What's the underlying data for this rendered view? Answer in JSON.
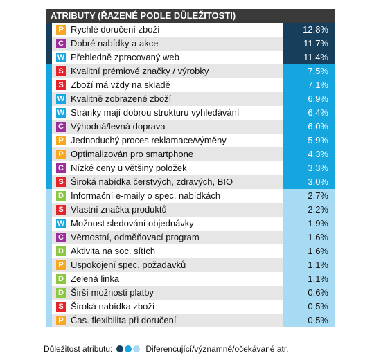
{
  "chart_data": {
    "type": "table",
    "title": "ATRIBUTY (ŘAZENÉ PODLE DŮLEŽITOSTI)",
    "rows": [
      {
        "code": "P",
        "label": "Rychlé doručení zboží",
        "value": "12,8%",
        "tier": 1
      },
      {
        "code": "C",
        "label": "Dobré nabídky a akce",
        "value": "11,7%",
        "tier": 1
      },
      {
        "code": "W",
        "label": "Přehledně zpracovaný web",
        "value": "11,4%",
        "tier": 1
      },
      {
        "code": "S",
        "label": "Kvalitní prémiové značky / výrobky",
        "value": "7,5%",
        "tier": 2
      },
      {
        "code": "S",
        "label": "Zboží má vždy na skladě",
        "value": "7,1%",
        "tier": 2
      },
      {
        "code": "W",
        "label": "Kvalitně zobrazené zboží",
        "value": "6,9%",
        "tier": 2
      },
      {
        "code": "W",
        "label": "Stránky mají dobrou strukturu vyhledávání",
        "value": "6,4%",
        "tier": 2
      },
      {
        "code": "C",
        "label": "Výhodná/levná doprava",
        "value": "6,0%",
        "tier": 2
      },
      {
        "code": "P",
        "label": "Jednoduchý proces reklamace/výměny",
        "value": "5,9%",
        "tier": 2
      },
      {
        "code": "P",
        "label": "Optimalizován pro smartphone",
        "value": "4,3%",
        "tier": 2
      },
      {
        "code": "C",
        "label": "Nízké ceny u většiny položek",
        "value": "3,3%",
        "tier": 2
      },
      {
        "code": "S",
        "label": "Široká nabídka čerstvých, zdravých, BIO",
        "value": "3,0%",
        "tier": 2
      },
      {
        "code": "D",
        "label": "Informační e-maily o spec. nabídkách",
        "value": "2,7%",
        "tier": 3
      },
      {
        "code": "S",
        "label": "Vlastní značka produktů",
        "value": "2,2%",
        "tier": 3
      },
      {
        "code": "W",
        "label": "Možnost sledování objednávky",
        "value": "1,9%",
        "tier": 3
      },
      {
        "code": "C",
        "label": "Věrnostní, odměňovací program",
        "value": "1,6%",
        "tier": 3
      },
      {
        "code": "D",
        "label": "Aktivita na soc. sítích",
        "value": "1,6%",
        "tier": 3
      },
      {
        "code": "P",
        "label": "Uspokojení spec. požadavků",
        "value": "1,1%",
        "tier": 3
      },
      {
        "code": "D",
        "label": "Zelená linka",
        "value": "1,1%",
        "tier": 3
      },
      {
        "code": "D",
        "label": "Širší možnosti platby",
        "value": "0,6%",
        "tier": 3
      },
      {
        "code": "S",
        "label": "Široká nabídka zboží",
        "value": "0,5%",
        "tier": 3
      },
      {
        "code": "P",
        "label": "Čas. flexibilita při doručení",
        "value": "0,5%",
        "tier": 3
      }
    ],
    "code_colors": {
      "P": "#f7a823",
      "C": "#9c2e9b",
      "W": "#1aa6df",
      "S": "#e3242b",
      "D": "#8dc63f"
    },
    "tier_colors": {
      "1": "#173e5a",
      "2": "#15a6df",
      "3": "#a7daf3"
    },
    "legend": {
      "prefix": "Důležitost atributu:",
      "suffix": "Diferencující/významné/očekávané atr."
    }
  }
}
